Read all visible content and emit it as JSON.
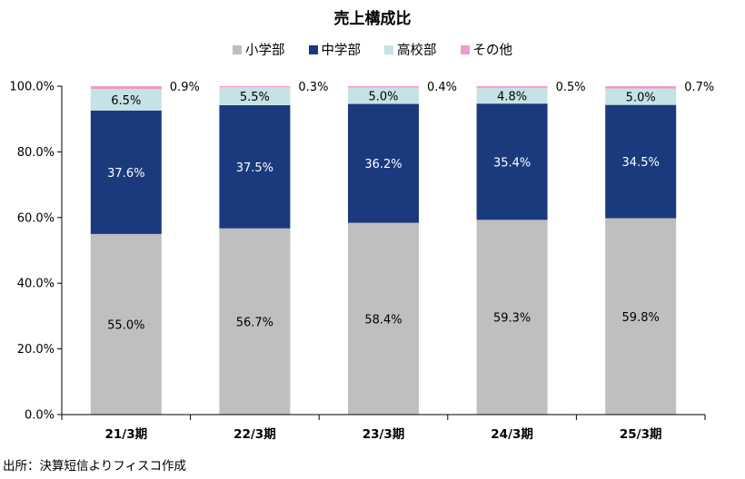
{
  "chart_data": {
    "type": "bar",
    "stacked": true,
    "title": "売上構成比",
    "categories": [
      "21/3期",
      "22/3期",
      "23/3期",
      "24/3期",
      "25/3期"
    ],
    "series": [
      {
        "name": "小学部",
        "color": "#bfbfbf",
        "label_color": "#000000",
        "values": [
          55.0,
          56.7,
          58.4,
          59.3,
          59.8
        ],
        "labels": [
          "55.0%",
          "56.7%",
          "58.4%",
          "59.3%",
          "59.8%"
        ]
      },
      {
        "name": "中学部",
        "color": "#1b3a7d",
        "label_color": "#ffffff",
        "values": [
          37.6,
          37.5,
          36.2,
          35.4,
          34.5
        ],
        "labels": [
          "37.6%",
          "37.5%",
          "36.2%",
          "35.4%",
          "34.5%"
        ]
      },
      {
        "name": "高校部",
        "color": "#c5e3e6",
        "label_color": "#000000",
        "values": [
          6.5,
          5.5,
          5.0,
          4.8,
          5.0
        ],
        "labels": [
          "6.5%",
          "5.5%",
          "5.0%",
          "4.8%",
          "5.0%"
        ]
      },
      {
        "name": "その他",
        "color": "#f29bc8",
        "label_color": "#000000",
        "values": [
          0.9,
          0.3,
          0.4,
          0.5,
          0.7
        ],
        "labels": [
          "0.9%",
          "0.3%",
          "0.4%",
          "0.5%",
          "0.7%"
        ]
      }
    ],
    "y_ticks": [
      "0.0%",
      "20.0%",
      "40.0%",
      "60.0%",
      "80.0%",
      "100.0%"
    ],
    "ylim": [
      0,
      100
    ],
    "grid": false,
    "legend_position": "top-center",
    "xlabel": "",
    "ylabel": ""
  },
  "source_note": "出所：決算短信よりフィスコ作成"
}
